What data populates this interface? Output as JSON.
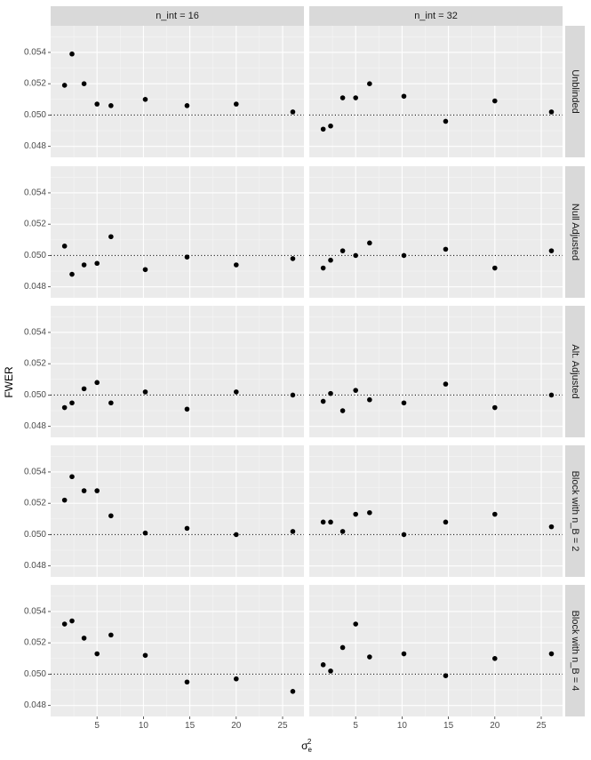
{
  "chart_data": {
    "type": "scatter",
    "facet_cols": [
      "n_int = 16",
      "n_int = 32"
    ],
    "facet_rows": [
      "Unblinded",
      "Null Adjusted",
      "Alt. Adjusted",
      "Block with n_B = 2",
      "Block with n_B = 4"
    ],
    "xlabel": "σ",
    "xlabel_sub": "e",
    "xlabel_sup": "2",
    "ylabel": "FWER",
    "xlim": [
      0,
      27.3
    ],
    "ylim": [
      0.0473,
      0.0557
    ],
    "x_ticks": [
      5,
      10,
      15,
      20,
      25
    ],
    "y_ticks": [
      0.048,
      0.05,
      0.052,
      0.054
    ],
    "y_tick_labels": [
      "0.048",
      "0.050",
      "0.052",
      "0.054"
    ],
    "reference_line": 0.05,
    "x": [
      1.5,
      2.3,
      3.6,
      5.0,
      6.5,
      10.2,
      14.7,
      20.0,
      26.1
    ],
    "panels": [
      [
        [
          0.0519,
          0.0539,
          0.052,
          0.0507,
          0.0506,
          0.051,
          0.0506,
          0.0507,
          0.0502
        ],
        [
          0.0491,
          0.0493,
          0.0511,
          0.0511,
          0.052,
          0.0512,
          0.0496,
          0.0509,
          0.0502
        ]
      ],
      [
        [
          0.0506,
          0.0488,
          0.0494,
          0.0495,
          0.0512,
          0.0491,
          0.0499,
          0.0494,
          0.0498
        ],
        [
          0.0492,
          0.0497,
          0.0503,
          0.05,
          0.0508,
          0.05,
          0.0504,
          0.0492,
          0.0503
        ]
      ],
      [
        [
          0.0492,
          0.0495,
          0.0504,
          0.0508,
          0.0495,
          0.0502,
          0.0491,
          0.0502,
          0.05
        ],
        [
          0.0496,
          0.0501,
          0.049,
          0.0503,
          0.0497,
          0.0495,
          0.0507,
          0.0492,
          0.05
        ]
      ],
      [
        [
          0.0522,
          0.0537,
          0.0528,
          0.0528,
          0.0512,
          0.0501,
          0.0504,
          0.05,
          0.0502
        ],
        [
          0.0508,
          0.0508,
          0.0502,
          0.0513,
          0.0514,
          0.05,
          0.0508,
          0.0513,
          0.0505
        ]
      ],
      [
        [
          0.0532,
          0.0534,
          0.0523,
          0.0513,
          0.0525,
          0.0512,
          0.0495,
          0.0497,
          0.0489
        ],
        [
          0.0506,
          0.0502,
          0.0517,
          0.0532,
          0.0511,
          0.0513,
          0.0499,
          0.051,
          0.0513
        ]
      ]
    ]
  }
}
